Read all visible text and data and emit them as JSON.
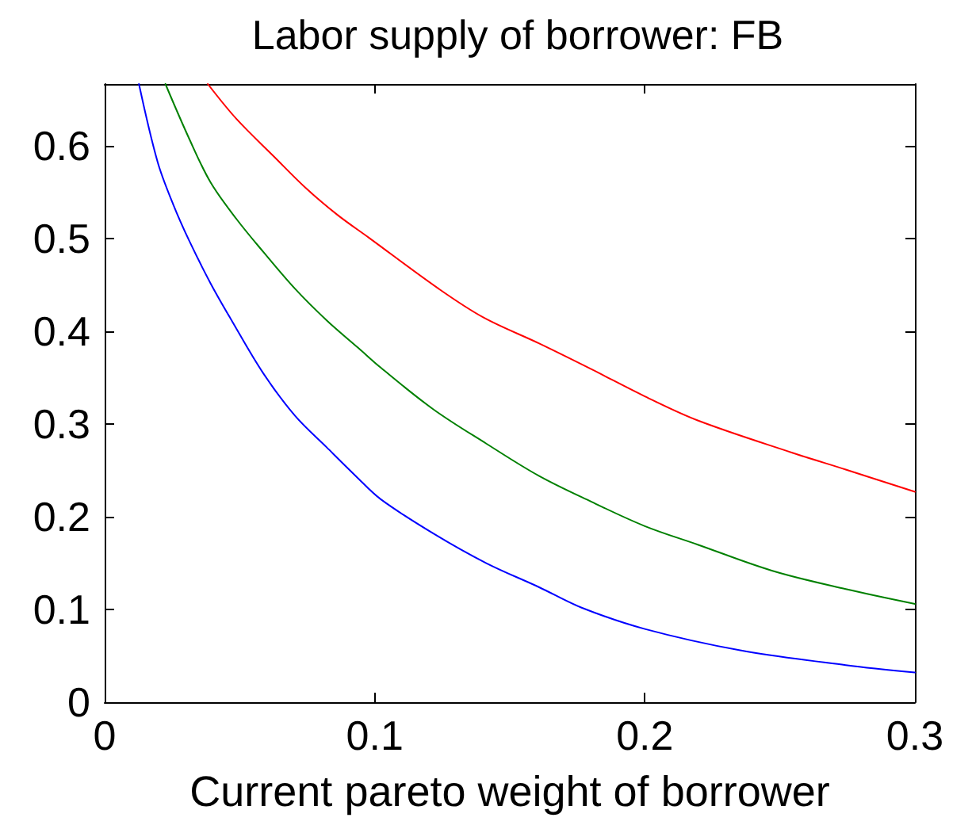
{
  "chart_data": {
    "type": "line",
    "title": "Labor supply of borrower: FB",
    "xlabel": "Current pareto weight of borrower",
    "xlim": [
      0,
      0.3
    ],
    "xticks": [
      0,
      0.1,
      0.2,
      0.3
    ],
    "ylim": [
      0,
      0.667
    ],
    "yticks": [
      0,
      0.1,
      0.2,
      0.3,
      0.4,
      0.5,
      0.6
    ],
    "marker": "none",
    "line_style": "solid",
    "series": [
      {
        "color": "#0000ff",
        "x": [
          0.0127,
          0.0196,
          0.0254,
          0.0313,
          0.0392,
          0.047,
          0.0587,
          0.0705,
          0.0822,
          0.093,
          0.1022,
          0.1217,
          0.1413,
          0.1609,
          0.1766,
          0.2,
          0.2353,
          0.2744,
          0.3
        ],
        "values": [
          0.667,
          0.583,
          0.537,
          0.498,
          0.452,
          0.412,
          0.355,
          0.309,
          0.275,
          0.244,
          0.219,
          0.182,
          0.15,
          0.124,
          0.102,
          0.079,
          0.056,
          0.04,
          0.032
        ]
      },
      {
        "color": "#008000",
        "x": [
          0.0225,
          0.0313,
          0.0392,
          0.0489,
          0.0587,
          0.0705,
          0.0822,
          0.094,
          0.1022,
          0.1217,
          0.1413,
          0.1609,
          0.1804,
          0.2,
          0.2196,
          0.247,
          0.2744,
          0.3
        ],
        "values": [
          0.667,
          0.608,
          0.561,
          0.521,
          0.486,
          0.446,
          0.412,
          0.382,
          0.361,
          0.316,
          0.279,
          0.244,
          0.216,
          0.19,
          0.17,
          0.142,
          0.122,
          0.106
        ]
      },
      {
        "color": "#ff0000",
        "x": [
          0.0382,
          0.0489,
          0.0626,
          0.0744,
          0.0861,
          0.0979,
          0.1237,
          0.1403,
          0.1609,
          0.1804,
          0.2,
          0.2196,
          0.2548,
          0.2744,
          0.3
        ],
        "values": [
          0.667,
          0.629,
          0.589,
          0.555,
          0.526,
          0.501,
          0.446,
          0.415,
          0.387,
          0.359,
          0.33,
          0.304,
          0.269,
          0.251,
          0.227
        ]
      }
    ]
  }
}
